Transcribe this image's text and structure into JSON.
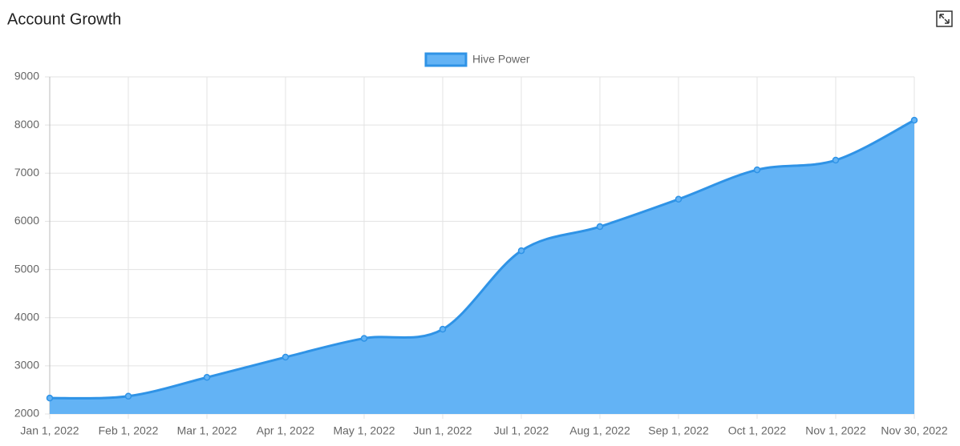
{
  "chart_data": {
    "type": "area",
    "title": "Account Growth",
    "categories": [
      "Jan 1, 2022",
      "Feb 1, 2022",
      "Mar 1, 2022",
      "Apr 1, 2022",
      "May 1, 2022",
      "Jun 1, 2022",
      "Jul 1, 2022",
      "Aug 1, 2022",
      "Sep 1, 2022",
      "Oct 1, 2022",
      "Nov 1, 2022",
      "Nov 30, 2022"
    ],
    "series": [
      {
        "name": "Hive Power",
        "color": "#2f93e6",
        "fill": "#63b3f5",
        "values": [
          2330,
          2370,
          2760,
          3180,
          3570,
          3760,
          5390,
          5890,
          6460,
          7070,
          7270,
          8100
        ]
      }
    ],
    "ylim": [
      2000,
      9000
    ],
    "yticks": [
      2000,
      3000,
      4000,
      5000,
      6000,
      7000,
      8000,
      9000
    ],
    "grid": true,
    "legend": "top"
  }
}
